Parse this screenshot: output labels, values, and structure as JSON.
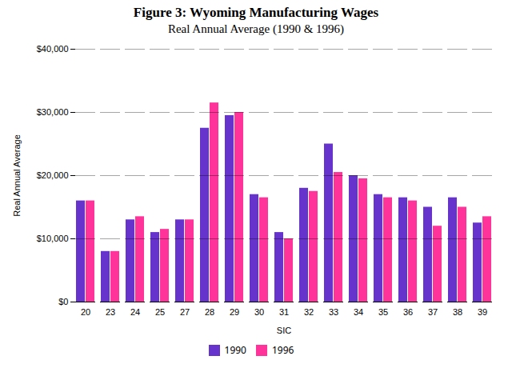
{
  "chart_data": {
    "type": "bar",
    "title": "Figure 3:  Wyoming Manufacturing Wages",
    "subtitle": "Real Annual Average (1990 & 1996)",
    "xlabel": "SIC",
    "ylabel": "Real Annual Average",
    "categories": [
      "20",
      "23",
      "24",
      "25",
      "27",
      "28",
      "29",
      "30",
      "31",
      "32",
      "33",
      "34",
      "35",
      "36",
      "37",
      "38",
      "39"
    ],
    "series": [
      {
        "name": "1990",
        "color": "#6633cc",
        "values": [
          16000,
          8000,
          13000,
          11000,
          13000,
          27500,
          29500,
          17000,
          11000,
          18000,
          25000,
          20000,
          17000,
          16500,
          15000,
          16500,
          12500
        ]
      },
      {
        "name": "1996",
        "color": "#ff3399",
        "values": [
          16000,
          8000,
          13500,
          11500,
          13000,
          31500,
          30000,
          16500,
          10000,
          17500,
          20500,
          19500,
          16500,
          16000,
          12000,
          15000,
          13500
        ]
      }
    ],
    "ylim": [
      0,
      40000
    ],
    "yticks": [
      {
        "value": 0,
        "label": "$0"
      },
      {
        "value": 10000,
        "label": "$10,000"
      },
      {
        "value": 20000,
        "label": "$20,000"
      },
      {
        "value": 30000,
        "label": "$30,000"
      },
      {
        "value": 40000,
        "label": "$40,000"
      }
    ],
    "grid": true,
    "legend": "bottom"
  }
}
